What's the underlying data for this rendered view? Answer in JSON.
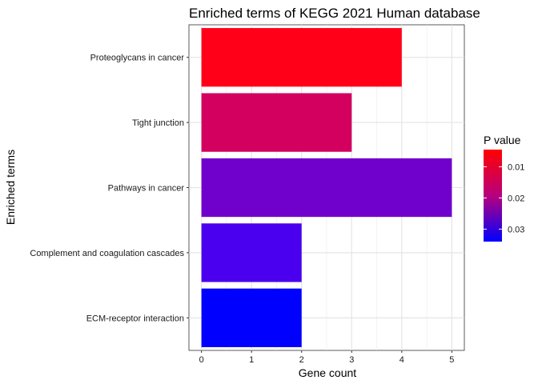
{
  "chart_data": {
    "type": "bar",
    "orientation": "horizontal",
    "title": "Enriched terms of KEGG 2021 Human database",
    "xlabel": "Gene count",
    "ylabel": "Enriched terms",
    "xlim": [
      -0.25,
      5.25
    ],
    "xticks": [
      0,
      1,
      2,
      3,
      4,
      5
    ],
    "grid": true,
    "categories": [
      "Proteoglycans in cancer",
      "Tight junction",
      "Pathways in cancer",
      "Complement and coagulation cascades",
      "ECM-receptor interaction"
    ],
    "values": [
      4,
      3,
      5,
      2,
      2
    ],
    "p_values": [
      0.0045,
      0.018,
      0.027,
      0.0325,
      0.034
    ],
    "bar_colors": [
      "#ff0018",
      "#d3005f",
      "#7000cc",
      "#4a00ee",
      "#0000ff"
    ],
    "legend": {
      "title": "P value",
      "position": "right",
      "ticks": [
        "0.01",
        "0.02",
        "0.03"
      ],
      "tick_values": [
        0.01,
        0.02,
        0.03
      ],
      "range": [
        0.0045,
        0.034
      ],
      "low_color": "#ff0000",
      "high_color": "#0000ff"
    }
  }
}
